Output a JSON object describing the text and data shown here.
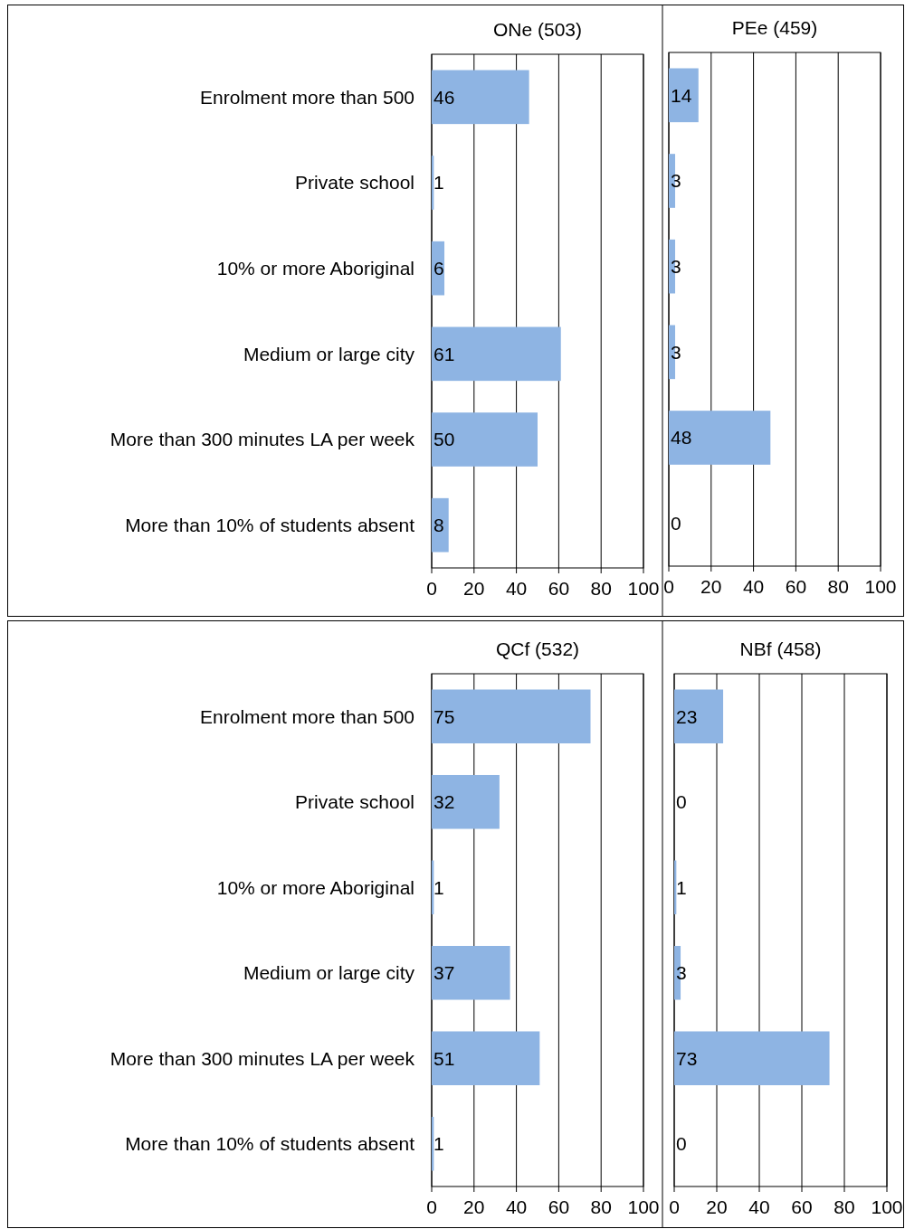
{
  "chart_data": [
    {
      "type": "bar",
      "orientation": "horizontal",
      "title": "ONe (503)",
      "categories": [
        "Enrolment more than 500",
        "Private school",
        "10% or more Aboriginal",
        "Medium or large city",
        "More than 300 minutes LA per week",
        "More than 10% of students absent"
      ],
      "values": [
        46,
        1,
        6,
        61,
        50,
        8
      ],
      "color": "#8eb4e3",
      "xlim": [
        0,
        100
      ],
      "xticks": [
        0,
        20,
        40,
        60,
        80,
        100
      ],
      "grid": "x",
      "data_labels": true
    },
    {
      "type": "bar",
      "orientation": "horizontal",
      "title": "PEe (459)",
      "categories": [
        null,
        null,
        null,
        null,
        null,
        null
      ],
      "values": [
        14,
        3,
        3,
        3,
        48,
        0
      ],
      "color": "#8eb4e3",
      "xlim": [
        0,
        100
      ],
      "xticks": [
        0,
        20,
        40,
        60,
        80,
        100
      ],
      "grid": "x",
      "data_labels": true,
      "tick_labels": "x"
    },
    {
      "type": "bar",
      "orientation": "horizontal",
      "title": "QCf (532)",
      "categories": [
        "Enrolment more than 500",
        "Private school",
        "10% or more Aboriginal",
        "Medium or large city",
        "More than 300 minutes LA per week",
        "More than 10% of students absent"
      ],
      "values": [
        75,
        32,
        1,
        37,
        51,
        1
      ],
      "color": "#8eb4e3",
      "xlim": [
        0,
        100
      ],
      "xticks": [
        0,
        20,
        40,
        60,
        80,
        100
      ],
      "grid": "x",
      "data_labels": true
    },
    {
      "type": "bar",
      "orientation": "horizontal",
      "title": "NBf (458)",
      "categories": [
        null,
        null,
        null,
        null,
        null,
        null
      ],
      "values": [
        23,
        0,
        1,
        3,
        73,
        0
      ],
      "color": "#8eb4e3",
      "xlim": [
        0,
        100
      ],
      "xticks": [
        0,
        20,
        40,
        60,
        80,
        100
      ],
      "grid": "x",
      "data_labels": true,
      "tick_labels": "x"
    }
  ]
}
